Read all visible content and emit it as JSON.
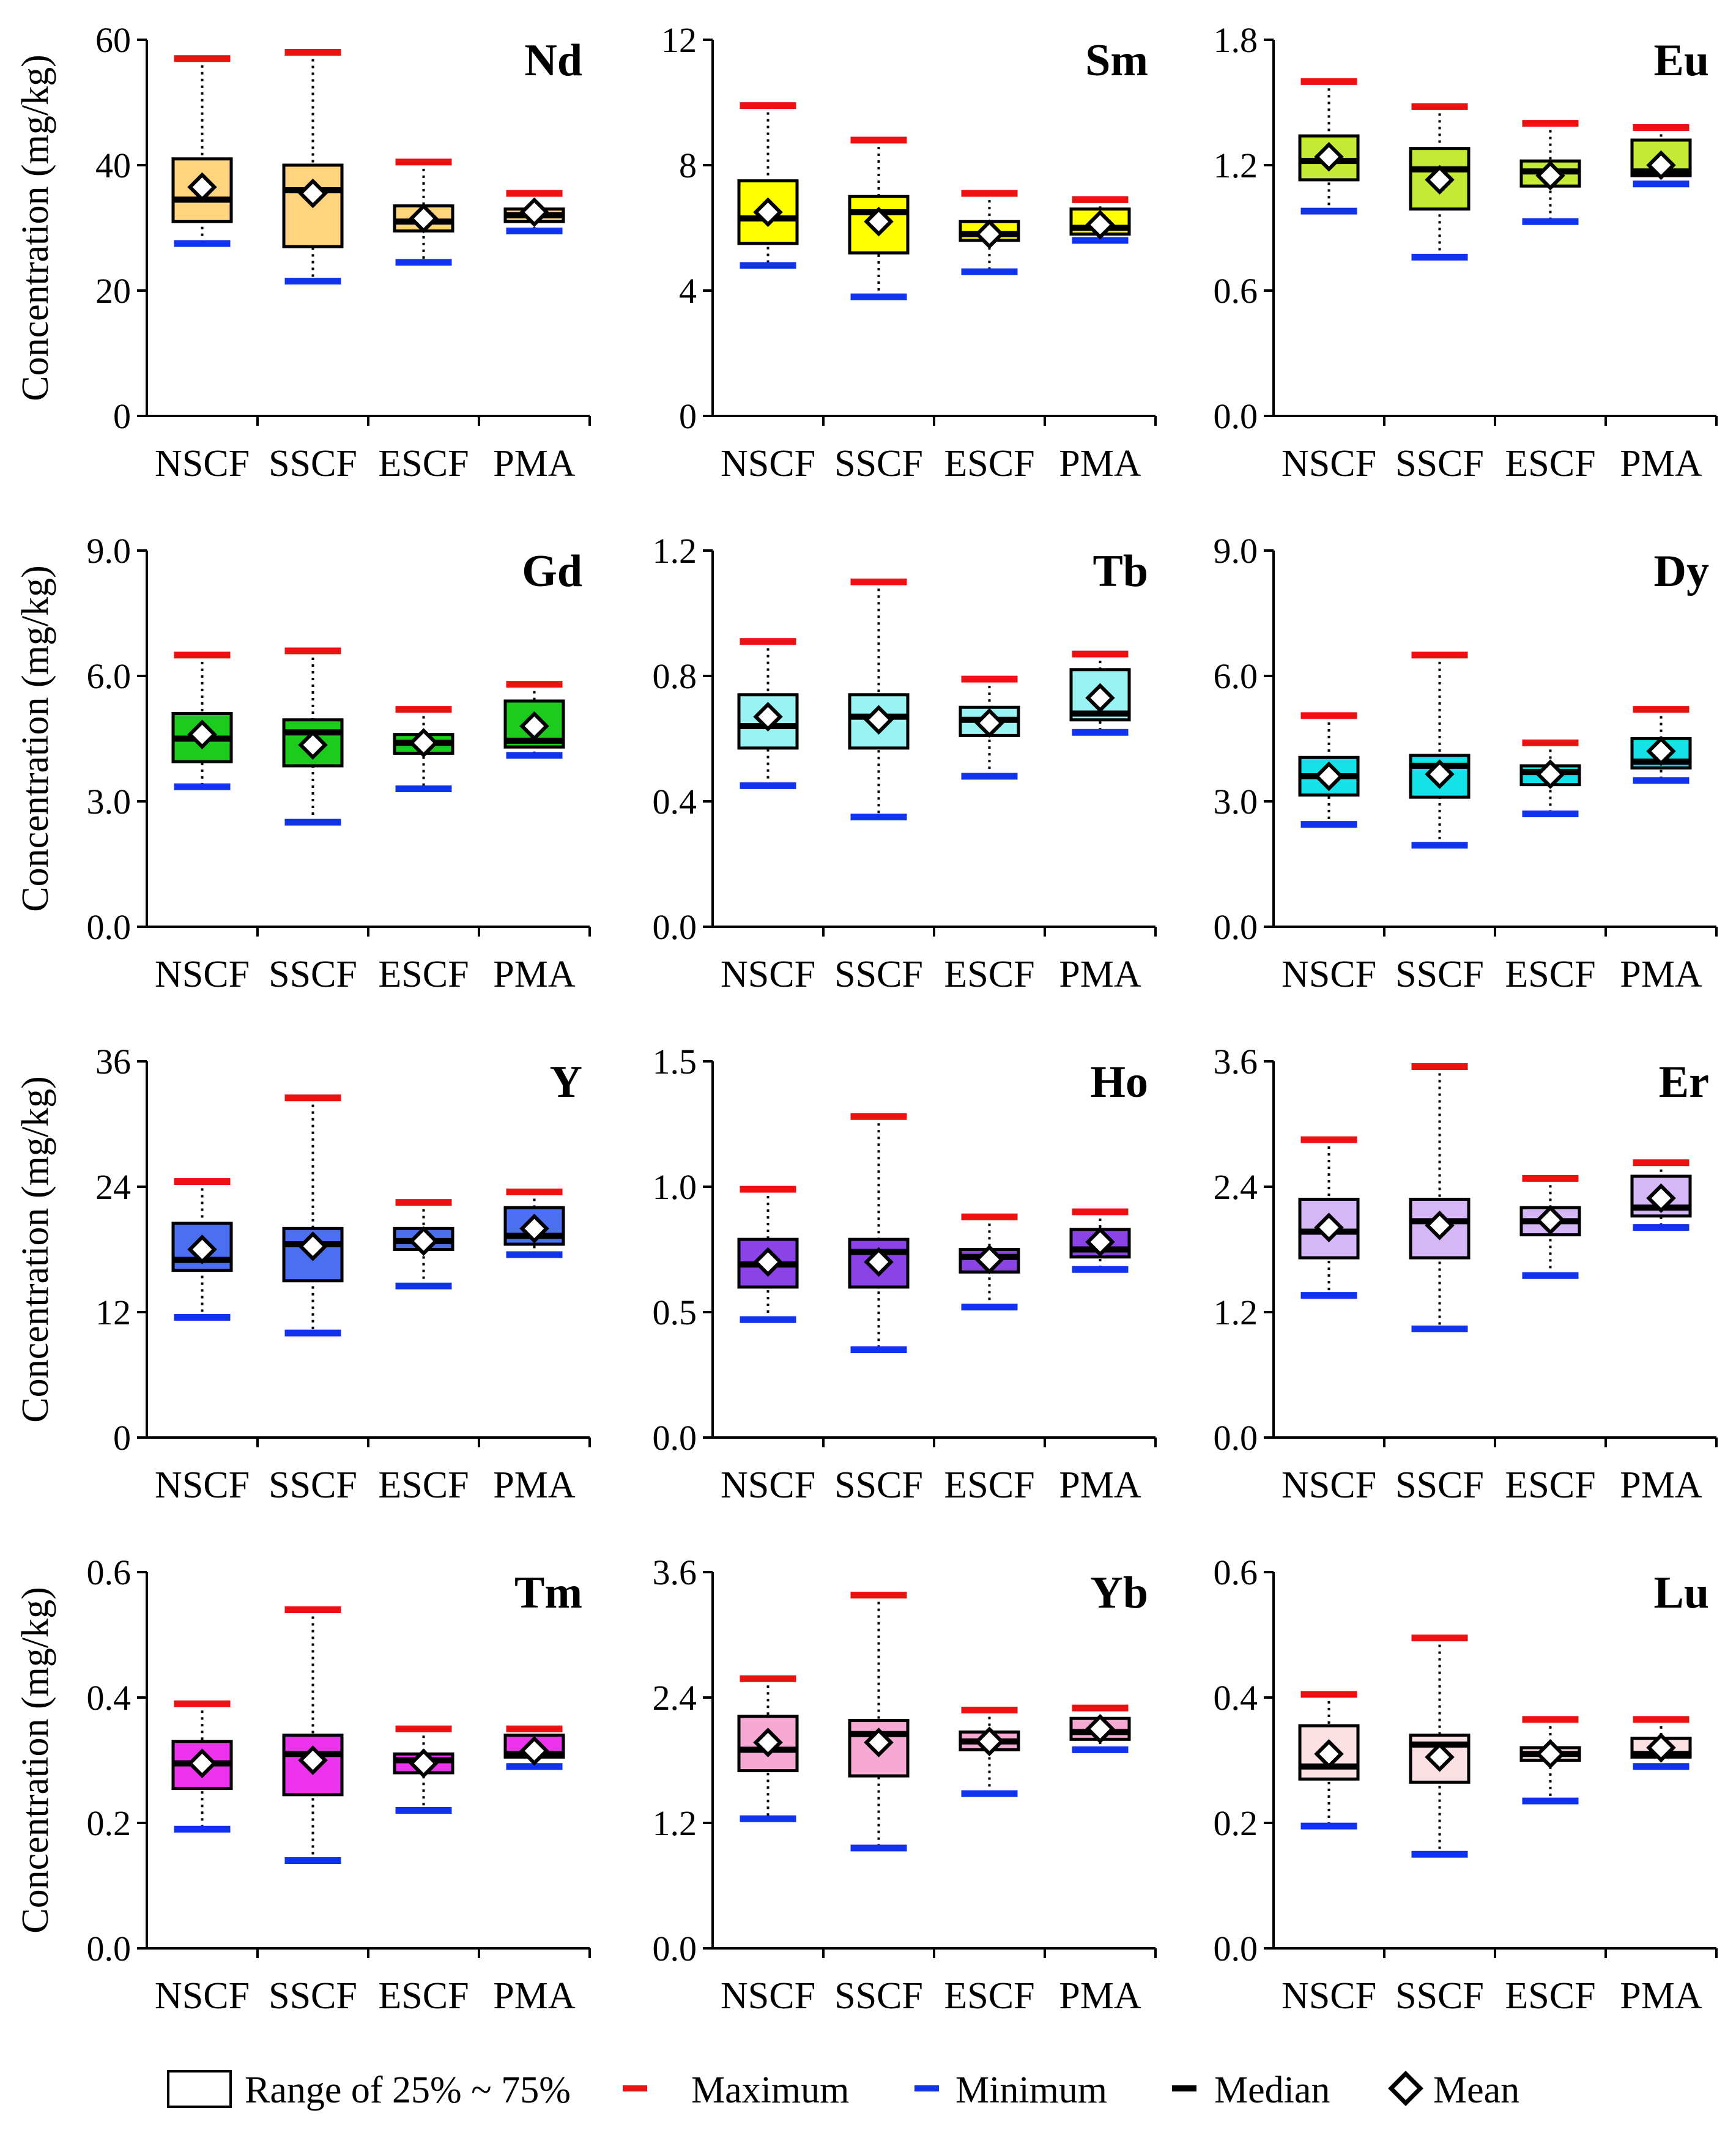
{
  "chart_data": [
    {
      "type": "box",
      "title": "Nd",
      "ylabel": "Concentration (mg/kg)",
      "ylim": [
        0,
        60
      ],
      "yticks": [
        "0",
        "20",
        "40",
        "60"
      ],
      "categories": [
        "NSCF",
        "SSCF",
        "ESCF",
        "PMA"
      ],
      "color": "#ffd47f",
      "boxes": [
        {
          "min": 27.5,
          "q1": 31,
          "median": 34.5,
          "q3": 41,
          "max": 57,
          "mean": 36.5
        },
        {
          "min": 21.5,
          "q1": 27,
          "median": 36,
          "q3": 40,
          "max": 58,
          "mean": 35.5
        },
        {
          "min": 24.5,
          "q1": 29.5,
          "median": 31,
          "q3": 33.5,
          "max": 40.5,
          "mean": 31.5
        },
        {
          "min": 29.5,
          "q1": 31,
          "median": 32,
          "q3": 33,
          "max": 35.5,
          "mean": 32.5
        }
      ]
    },
    {
      "type": "box",
      "title": "Sm",
      "ylabel": "",
      "ylim": [
        0,
        12
      ],
      "yticks": [
        "0",
        "4",
        "8",
        "12"
      ],
      "categories": [
        "NSCF",
        "SSCF",
        "ESCF",
        "PMA"
      ],
      "color": "#ffff00",
      "boxes": [
        {
          "min": 4.8,
          "q1": 5.5,
          "median": 6.3,
          "q3": 7.5,
          "max": 9.9,
          "mean": 6.5
        },
        {
          "min": 3.8,
          "q1": 5.2,
          "median": 6.5,
          "q3": 7.0,
          "max": 8.8,
          "mean": 6.2
        },
        {
          "min": 4.6,
          "q1": 5.6,
          "median": 5.8,
          "q3": 6.2,
          "max": 7.1,
          "mean": 5.8
        },
        {
          "min": 5.6,
          "q1": 5.8,
          "median": 6.0,
          "q3": 6.6,
          "max": 6.9,
          "mean": 6.1
        }
      ]
    },
    {
      "type": "box",
      "title": "Eu",
      "ylabel": "",
      "ylim": [
        0,
        1.8
      ],
      "yticks": [
        "0.0",
        "0.6",
        "1.2",
        "1.8"
      ],
      "categories": [
        "NSCF",
        "SSCF",
        "ESCF",
        "PMA"
      ],
      "color": "#c5ea35",
      "boxes": [
        {
          "min": 0.98,
          "q1": 1.13,
          "median": 1.22,
          "q3": 1.34,
          "max": 1.6,
          "mean": 1.24
        },
        {
          "min": 0.76,
          "q1": 0.99,
          "median": 1.18,
          "q3": 1.28,
          "max": 1.48,
          "mean": 1.13
        },
        {
          "min": 0.93,
          "q1": 1.1,
          "median": 1.17,
          "q3": 1.22,
          "max": 1.4,
          "mean": 1.15
        },
        {
          "min": 1.11,
          "q1": 1.15,
          "median": 1.17,
          "q3": 1.32,
          "max": 1.38,
          "mean": 1.2
        }
      ]
    },
    {
      "type": "box",
      "title": "Gd",
      "ylabel": "Concentration (mg/kg)",
      "ylim": [
        0,
        9
      ],
      "yticks": [
        "0.0",
        "3.0",
        "6.0",
        "9.0"
      ],
      "categories": [
        "NSCF",
        "SSCF",
        "ESCF",
        "PMA"
      ],
      "color": "#1ccc1c",
      "boxes": [
        {
          "min": 3.35,
          "q1": 3.95,
          "median": 4.5,
          "q3": 5.1,
          "max": 6.5,
          "mean": 4.6
        },
        {
          "min": 2.5,
          "q1": 3.85,
          "median": 4.65,
          "q3": 4.95,
          "max": 6.6,
          "mean": 4.35
        },
        {
          "min": 3.3,
          "q1": 4.15,
          "median": 4.4,
          "q3": 4.6,
          "max": 5.2,
          "mean": 4.4
        },
        {
          "min": 4.1,
          "q1": 4.3,
          "median": 4.45,
          "q3": 5.4,
          "max": 5.8,
          "mean": 4.8
        }
      ]
    },
    {
      "type": "box",
      "title": "Tb",
      "ylabel": "",
      "ylim": [
        0,
        1.2
      ],
      "yticks": [
        "0.0",
        "0.4",
        "0.8",
        "1.2"
      ],
      "categories": [
        "NSCF",
        "SSCF",
        "ESCF",
        "PMA"
      ],
      "color": "#9af3f3",
      "boxes": [
        {
          "min": 0.45,
          "q1": 0.57,
          "median": 0.64,
          "q3": 0.74,
          "max": 0.91,
          "mean": 0.67
        },
        {
          "min": 0.35,
          "q1": 0.57,
          "median": 0.67,
          "q3": 0.74,
          "max": 1.1,
          "mean": 0.66
        },
        {
          "min": 0.48,
          "q1": 0.61,
          "median": 0.66,
          "q3": 0.7,
          "max": 0.79,
          "mean": 0.65
        },
        {
          "min": 0.62,
          "q1": 0.66,
          "median": 0.68,
          "q3": 0.82,
          "max": 0.87,
          "mean": 0.73
        }
      ]
    },
    {
      "type": "box",
      "title": "Dy",
      "ylabel": "",
      "ylim": [
        0,
        9
      ],
      "yticks": [
        "0.0",
        "3.0",
        "6.0",
        "9.0"
      ],
      "categories": [
        "NSCF",
        "SSCF",
        "ESCF",
        "PMA"
      ],
      "color": "#14e2e6",
      "boxes": [
        {
          "min": 2.45,
          "q1": 3.15,
          "median": 3.6,
          "q3": 4.05,
          "max": 5.05,
          "mean": 3.6
        },
        {
          "min": 1.95,
          "q1": 3.1,
          "median": 3.85,
          "q3": 4.1,
          "max": 6.5,
          "mean": 3.65
        },
        {
          "min": 2.7,
          "q1": 3.4,
          "median": 3.7,
          "q3": 3.85,
          "max": 4.4,
          "mean": 3.65
        },
        {
          "min": 3.5,
          "q1": 3.8,
          "median": 3.95,
          "q3": 4.5,
          "max": 5.2,
          "mean": 4.2
        }
      ]
    },
    {
      "type": "box",
      "title": "Y",
      "ylabel": "Concentration (mg/kg)",
      "ylim": [
        0,
        36
      ],
      "yticks": [
        "0",
        "12",
        "24",
        "36"
      ],
      "categories": [
        "NSCF",
        "SSCF",
        "ESCF",
        "PMA"
      ],
      "color": "#4a6ff0",
      "boxes": [
        {
          "min": 11.5,
          "q1": 16,
          "median": 17,
          "q3": 20.5,
          "max": 24.5,
          "mean": 18
        },
        {
          "min": 10,
          "q1": 15,
          "median": 18.5,
          "q3": 20,
          "max": 32.5,
          "mean": 18.3
        },
        {
          "min": 14.5,
          "q1": 18,
          "median": 18.8,
          "q3": 20,
          "max": 22.5,
          "mean": 18.8
        },
        {
          "min": 17.5,
          "q1": 18.5,
          "median": 19.3,
          "q3": 22,
          "max": 23.5,
          "mean": 20
        }
      ]
    },
    {
      "type": "box",
      "title": "Ho",
      "ylabel": "",
      "ylim": [
        0,
        1.5
      ],
      "yticks": [
        "0.0",
        "0.5",
        "1.0",
        "1.5"
      ],
      "categories": [
        "NSCF",
        "SSCF",
        "ESCF",
        "PMA"
      ],
      "color": "#8a43e6",
      "boxes": [
        {
          "min": 0.47,
          "q1": 0.6,
          "median": 0.69,
          "q3": 0.79,
          "max": 0.99,
          "mean": 0.7
        },
        {
          "min": 0.35,
          "q1": 0.6,
          "median": 0.74,
          "q3": 0.79,
          "max": 1.28,
          "mean": 0.7
        },
        {
          "min": 0.52,
          "q1": 0.66,
          "median": 0.72,
          "q3": 0.75,
          "max": 0.88,
          "mean": 0.71
        },
        {
          "min": 0.67,
          "q1": 0.72,
          "median": 0.75,
          "q3": 0.83,
          "max": 0.9,
          "mean": 0.78
        }
      ]
    },
    {
      "type": "box",
      "title": "Er",
      "ylabel": "",
      "ylim": [
        0,
        3.6
      ],
      "yticks": [
        "0.0",
        "1.2",
        "2.4",
        "3.6"
      ],
      "categories": [
        "NSCF",
        "SSCF",
        "ESCF",
        "PMA"
      ],
      "color": "#d5b6f6",
      "boxes": [
        {
          "min": 1.36,
          "q1": 1.72,
          "median": 1.97,
          "q3": 2.28,
          "max": 2.85,
          "mean": 2.01
        },
        {
          "min": 1.04,
          "q1": 1.72,
          "median": 2.07,
          "q3": 2.28,
          "max": 3.55,
          "mean": 2.03
        },
        {
          "min": 1.55,
          "q1": 1.94,
          "median": 2.07,
          "q3": 2.2,
          "max": 2.48,
          "mean": 2.08
        },
        {
          "min": 2.01,
          "q1": 2.12,
          "median": 2.2,
          "q3": 2.5,
          "max": 2.63,
          "mean": 2.29
        }
      ]
    },
    {
      "type": "box",
      "title": "Tm",
      "ylabel": "Concentration (mg/kg)",
      "ylim": [
        0,
        0.6
      ],
      "yticks": [
        "0.0",
        "0.2",
        "0.4",
        "0.6"
      ],
      "categories": [
        "NSCF",
        "SSCF",
        "ESCF",
        "PMA"
      ],
      "color": "#ee33ee",
      "boxes": [
        {
          "min": 0.19,
          "q1": 0.255,
          "median": 0.295,
          "q3": 0.33,
          "max": 0.39,
          "mean": 0.295
        },
        {
          "min": 0.14,
          "q1": 0.245,
          "median": 0.31,
          "q3": 0.34,
          "max": 0.54,
          "mean": 0.3
        },
        {
          "min": 0.22,
          "q1": 0.28,
          "median": 0.3,
          "q3": 0.31,
          "max": 0.35,
          "mean": 0.295
        },
        {
          "min": 0.29,
          "q1": 0.305,
          "median": 0.31,
          "q3": 0.34,
          "max": 0.35,
          "mean": 0.315
        }
      ]
    },
    {
      "type": "box",
      "title": "Yb",
      "ylabel": "",
      "ylim": [
        0,
        3.6
      ],
      "yticks": [
        "0.0",
        "1.2",
        "2.4",
        "3.6"
      ],
      "categories": [
        "NSCF",
        "SSCF",
        "ESCF",
        "PMA"
      ],
      "color": "#f6a9d2",
      "boxes": [
        {
          "min": 1.24,
          "q1": 1.7,
          "median": 1.9,
          "q3": 2.22,
          "max": 2.58,
          "mean": 1.97
        },
        {
          "min": 0.96,
          "q1": 1.65,
          "median": 2.05,
          "q3": 2.18,
          "max": 3.38,
          "mean": 1.97
        },
        {
          "min": 1.48,
          "q1": 1.9,
          "median": 1.98,
          "q3": 2.07,
          "max": 2.28,
          "mean": 1.98
        },
        {
          "min": 1.9,
          "q1": 2.0,
          "median": 2.07,
          "q3": 2.2,
          "max": 2.3,
          "mean": 2.1
        }
      ]
    },
    {
      "type": "box",
      "title": "Lu",
      "ylabel": "",
      "ylim": [
        0,
        0.6
      ],
      "yticks": [
        "0.0",
        "0.2",
        "0.4",
        "0.6"
      ],
      "categories": [
        "NSCF",
        "SSCF",
        "ESCF",
        "PMA"
      ],
      "color": "#fbe1e4",
      "boxes": [
        {
          "min": 0.195,
          "q1": 0.27,
          "median": 0.29,
          "q3": 0.355,
          "max": 0.405,
          "mean": 0.31
        },
        {
          "min": 0.15,
          "q1": 0.265,
          "median": 0.325,
          "q3": 0.34,
          "max": 0.495,
          "mean": 0.305
        },
        {
          "min": 0.235,
          "q1": 0.3,
          "median": 0.31,
          "q3": 0.32,
          "max": 0.365,
          "mean": 0.31
        },
        {
          "min": 0.29,
          "q1": 0.305,
          "median": 0.31,
          "q3": 0.335,
          "max": 0.365,
          "mean": 0.32
        }
      ]
    }
  ],
  "legend": {
    "range": "Range of 25% ~ 75%",
    "maximum": "Maximum",
    "minimum": "Minimum",
    "median": "Median",
    "mean": "Mean"
  },
  "colors": {
    "maximum": "#ee1111",
    "minimum": "#1133ee",
    "median": "#000000"
  }
}
